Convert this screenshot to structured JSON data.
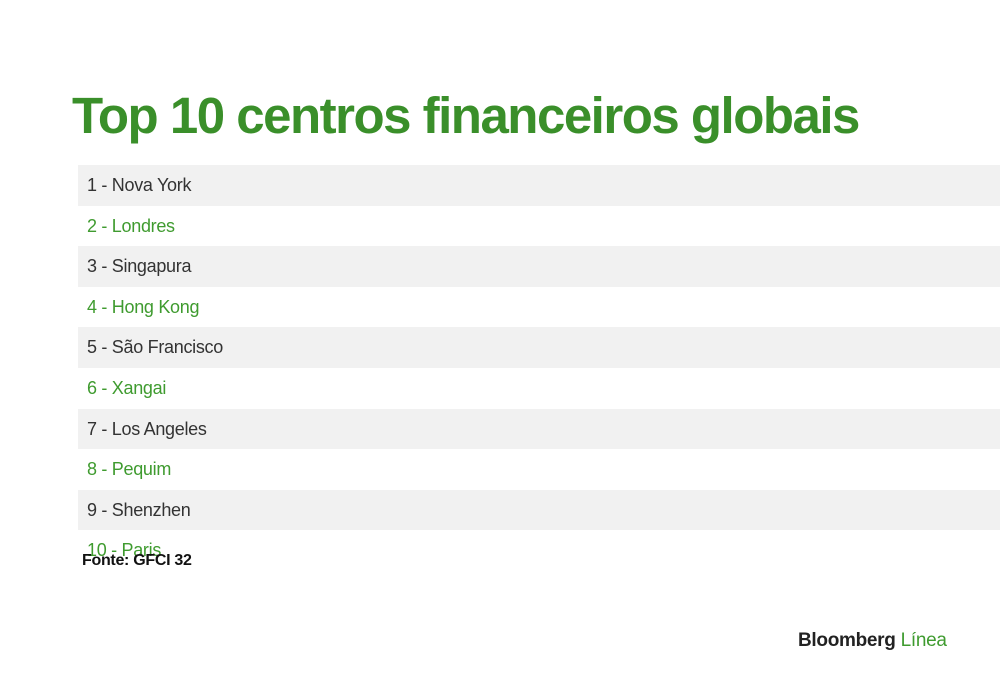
{
  "title": "Top 10 centros financeiros globais",
  "rows": [
    "1 - Nova York",
    "2 - Londres",
    "3 - Singapura",
    "4 - Hong Kong",
    "5 - São Francisco",
    "6 - Xangai",
    "7 - Los Angeles",
    "8 - Pequim",
    "9 - Shenzhen",
    "10 - Paris"
  ],
  "source": "Fonte: GFCI 32",
  "brand": {
    "name": "Bloomberg",
    "suffix": "Línea"
  }
}
